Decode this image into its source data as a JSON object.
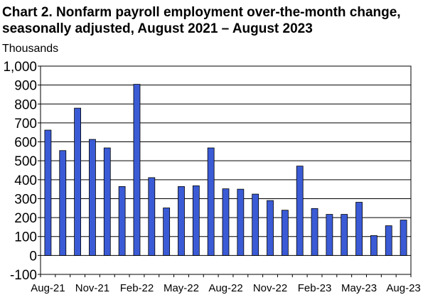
{
  "chart_data": {
    "type": "bar",
    "title": "Chart 2. Nonfarm payroll employment over-the-month change, seasonally adjusted, August 2021 – August 2023",
    "units_label": "Thousands",
    "xlabel": "",
    "ylabel": "Thousands",
    "ylim": [
      -100,
      1000
    ],
    "yticks": [
      -100,
      0,
      100,
      200,
      300,
      400,
      500,
      600,
      700,
      800,
      900,
      1000
    ],
    "ytick_labels": [
      "-100",
      "0",
      "100",
      "200",
      "300",
      "400",
      "500",
      "600",
      "700",
      "800",
      "900",
      "1,000"
    ],
    "grid": true,
    "bar_color": "#3b5bd6",
    "categories": [
      "Aug-21",
      "Sep-21",
      "Oct-21",
      "Nov-21",
      "Dec-21",
      "Jan-22",
      "Feb-22",
      "Mar-22",
      "Apr-22",
      "May-22",
      "Jun-22",
      "Jul-22",
      "Aug-22",
      "Sep-22",
      "Oct-22",
      "Nov-22",
      "Dec-22",
      "Jan-23",
      "Feb-23",
      "Mar-23",
      "Apr-23",
      "May-23",
      "Jun-23",
      "Jul-23",
      "Aug-23"
    ],
    "xtick_labels": [
      "Aug-21",
      "Nov-21",
      "Feb-22",
      "May-22",
      "Aug-22",
      "Nov-22",
      "Feb-23",
      "May-23",
      "Aug-23"
    ],
    "values": [
      662,
      554,
      778,
      613,
      568,
      364,
      904,
      411,
      251,
      364,
      368,
      568,
      352,
      350,
      324,
      290,
      239,
      472,
      248,
      217,
      217,
      281,
      105,
      157,
      187
    ]
  }
}
